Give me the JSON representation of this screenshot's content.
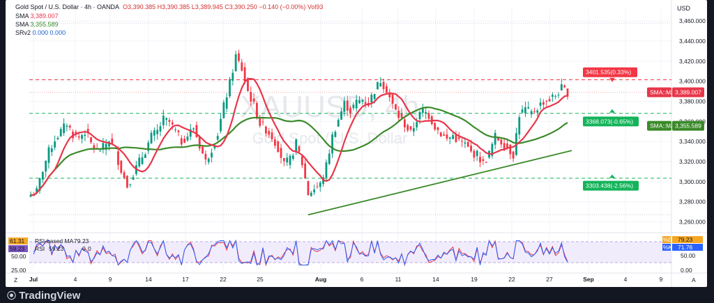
{
  "header": {
    "title": "Gold Spot / U.S. Dollar · 4h · OANDA",
    "open": "O3,390.385",
    "high": "H3,390.385",
    "low": "L3,389.945",
    "close": "C3,390.250",
    "change": "−0.140 (−0.00%)",
    "vol": "Vol93",
    "sma1_label": "SMA",
    "sma1_value": "3,389.007",
    "sma2_label": "SMA",
    "sma2_value": "3,355.589",
    "srv2_label": "SRv2",
    "srv2_values": "0.000  0.000",
    "currency": "USD"
  },
  "watermark": {
    "symbol": "XAUUSD, 4h",
    "name": "Gold Spot / U.S. Dollar"
  },
  "price_tags": {
    "sma_fast_label": "SMA::MA",
    "sma_fast_value": "3,389.007",
    "sma_slow_label": "SMA::MA",
    "sma_slow_value": "3,355.589",
    "level_high": "3401.535(0.33%)",
    "level_mid": "3368.073(-0.65%)",
    "level_low": "3303.438(-2.56%)"
  },
  "rsi": {
    "label_based": "RSI-based MA",
    "label_rsi": "RSI",
    "val_based": "61.31",
    "val_rsi": "59.23",
    "inline_a": "59.23",
    "inline_b": "79.23",
    "inline_c": "0",
    "inline_d": "0",
    "left_ticks": [
      "50.00",
      "25.00"
    ],
    "right_ticks": [
      "50.00",
      "0.00"
    ],
    "tag_d_label": "%D",
    "tag_d_value": "79.23",
    "tag_k_label": "%K",
    "tag_k_value": "71.76"
  },
  "footer": {
    "logo": "TradingView"
  },
  "colors": {
    "up": "#089981",
    "down": "#f23645",
    "sma_fast": "#e8364a",
    "sma_slow": "#3b8a2a",
    "trendline": "#3b8a2a",
    "level_red": "#f23645",
    "level_green": "#14b45a"
  },
  "chart_data": {
    "type": "candlestick",
    "y_axis_ticks": [
      3460,
      3440,
      3420,
      3400,
      3380,
      3360,
      3340,
      3320,
      3300,
      3280,
      3260
    ],
    "ylim": [
      3252,
      3474
    ],
    "x_axis_labels": [
      "Jul",
      "4",
      "9",
      "14",
      "17",
      "22",
      "25",
      "Aug",
      "6",
      "11",
      "14",
      "19",
      "22",
      "27",
      "Sep",
      "4",
      "9"
    ],
    "x_axis_label_bold": [
      "Jul",
      "Aug",
      "Sep"
    ],
    "horizontal_levels": [
      {
        "value": 3401.535,
        "style": "dashed",
        "color": "red",
        "label": "3401.535(0.33%)"
      },
      {
        "value": 3368.073,
        "style": "dashed",
        "color": "green",
        "label": "3368.073(-0.65%)"
      },
      {
        "value": 3303.438,
        "style": "dashed",
        "color": "green",
        "label": "3303.438(-2.56%)"
      }
    ],
    "trendline": {
      "from": [
        3267
      ],
      "to": [
        3331
      ]
    },
    "close_path": [
      [
        0,
        3287
      ],
      [
        2,
        3290
      ],
      [
        4,
        3312
      ],
      [
        6,
        3330
      ],
      [
        8,
        3342
      ],
      [
        10,
        3350
      ],
      [
        12,
        3358
      ],
      [
        14,
        3347
      ],
      [
        16,
        3344
      ],
      [
        18,
        3350
      ],
      [
        20,
        3338
      ],
      [
        22,
        3330
      ],
      [
        24,
        3334
      ],
      [
        26,
        3342
      ],
      [
        28,
        3330
      ],
      [
        30,
        3312
      ],
      [
        32,
        3296
      ],
      [
        34,
        3308
      ],
      [
        36,
        3320
      ],
      [
        38,
        3331
      ],
      [
        40,
        3345
      ],
      [
        42,
        3350
      ],
      [
        44,
        3362
      ],
      [
        46,
        3359
      ],
      [
        48,
        3350
      ],
      [
        50,
        3340
      ],
      [
        52,
        3346
      ],
      [
        54,
        3354
      ],
      [
        56,
        3336
      ],
      [
        58,
        3320
      ],
      [
        60,
        3333
      ],
      [
        62,
        3348
      ],
      [
        64,
        3375
      ],
      [
        66,
        3398
      ],
      [
        68,
        3425
      ],
      [
        70,
        3412
      ],
      [
        72,
        3390
      ],
      [
        74,
        3376
      ],
      [
        76,
        3358
      ],
      [
        78,
        3352
      ],
      [
        80,
        3345
      ],
      [
        82,
        3334
      ],
      [
        84,
        3317
      ],
      [
        86,
        3322
      ],
      [
        88,
        3338
      ],
      [
        90,
        3318
      ],
      [
        92,
        3288
      ],
      [
        94,
        3293
      ],
      [
        96,
        3297
      ],
      [
        98,
        3316
      ],
      [
        100,
        3345
      ],
      [
        102,
        3362
      ],
      [
        104,
        3378
      ],
      [
        106,
        3371
      ],
      [
        108,
        3379
      ],
      [
        110,
        3382
      ],
      [
        112,
        3378
      ],
      [
        114,
        3391
      ],
      [
        116,
        3401
      ],
      [
        118,
        3392
      ],
      [
        120,
        3376
      ],
      [
        122,
        3365
      ],
      [
        124,
        3357
      ],
      [
        126,
        3348
      ],
      [
        128,
        3362
      ],
      [
        130,
        3371
      ],
      [
        132,
        3366
      ],
      [
        134,
        3355
      ],
      [
        136,
        3348
      ],
      [
        138,
        3342
      ],
      [
        140,
        3346
      ],
      [
        142,
        3340
      ],
      [
        144,
        3337
      ],
      [
        146,
        3329
      ],
      [
        148,
        3327
      ],
      [
        150,
        3318
      ],
      [
        152,
        3328
      ],
      [
        154,
        3345
      ],
      [
        156,
        3340
      ],
      [
        158,
        3334
      ],
      [
        160,
        3327
      ],
      [
        162,
        3367
      ],
      [
        164,
        3372
      ],
      [
        166,
        3368
      ],
      [
        168,
        3374
      ],
      [
        170,
        3380
      ],
      [
        172,
        3382
      ],
      [
        174,
        3386
      ],
      [
        176,
        3393
      ],
      [
        178,
        3389
      ]
    ],
    "sma_fast_values": "20-period SMA derived from close_path",
    "sma_slow_values": "50-period SMA derived from close_path"
  }
}
